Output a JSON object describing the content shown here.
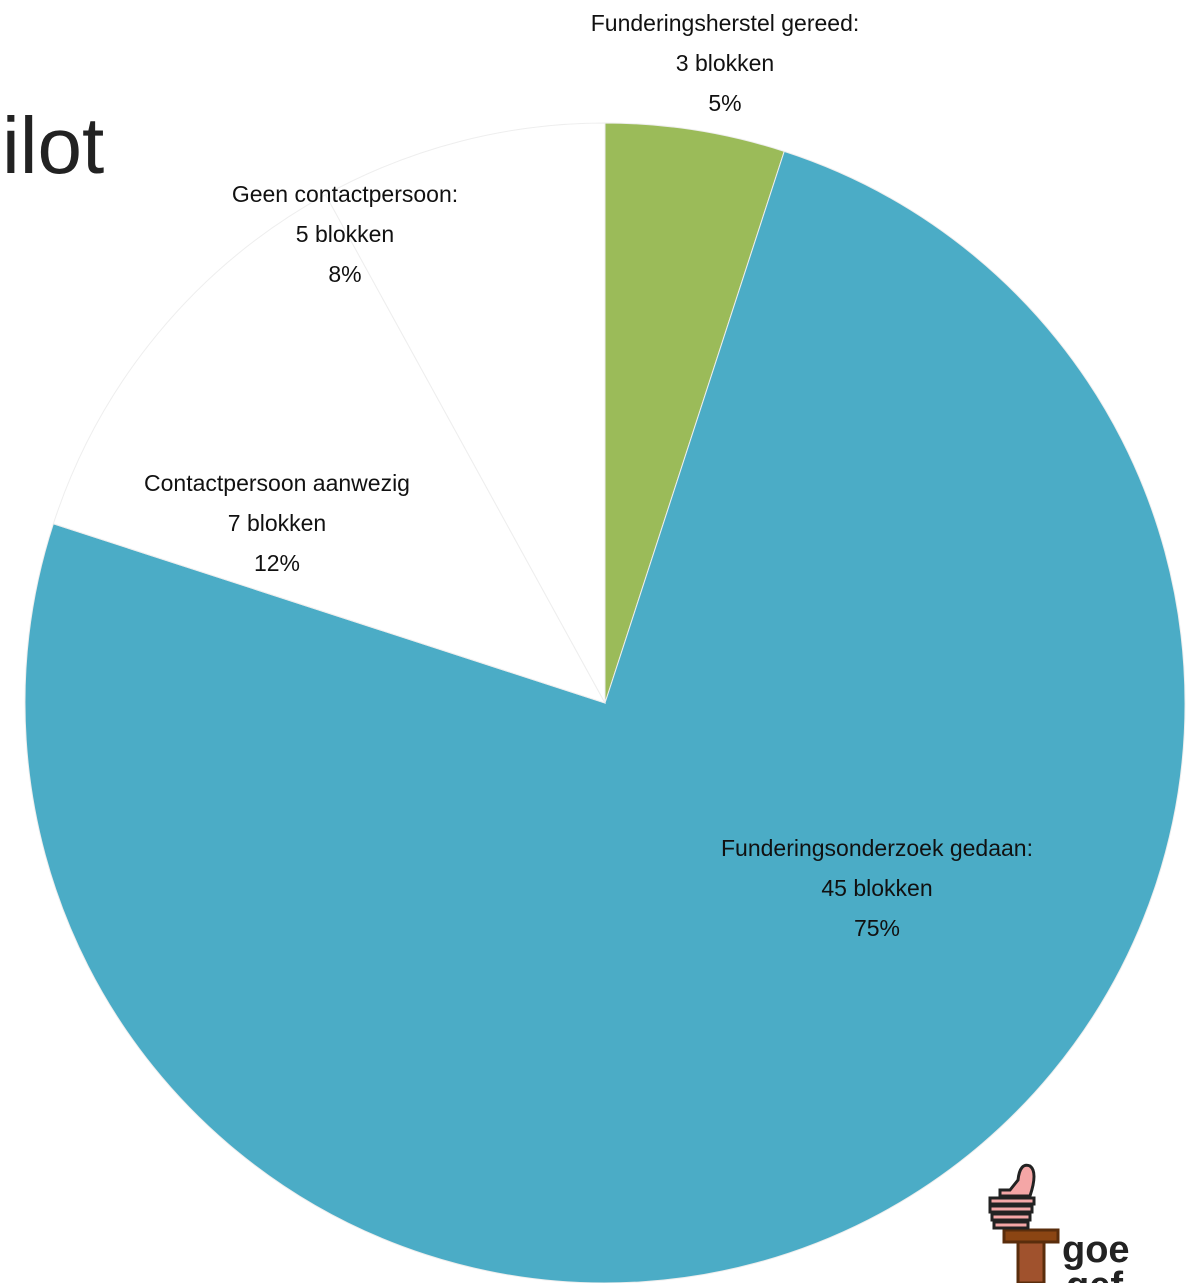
{
  "title": "ilot",
  "chart_data": {
    "type": "pie",
    "categories": [
      "Funderingsherstel gereed:",
      "Funderingsonderzoek gedaan:",
      "Contactpersoon aanwezig",
      "Geen contactpersoon:"
    ],
    "count_labels": [
      "3 blokken",
      "45 blokken",
      "7 blokken",
      "5 blokken"
    ],
    "values": [
      5,
      75,
      12,
      8
    ],
    "value_labels": [
      "5%",
      "75%",
      "12%",
      "8%"
    ],
    "colors": [
      "#9bbb59",
      "#4bacc6",
      "#ffffff",
      "#ffffff"
    ]
  },
  "logo": {
    "line1": "goe",
    "line2": "gef"
  }
}
